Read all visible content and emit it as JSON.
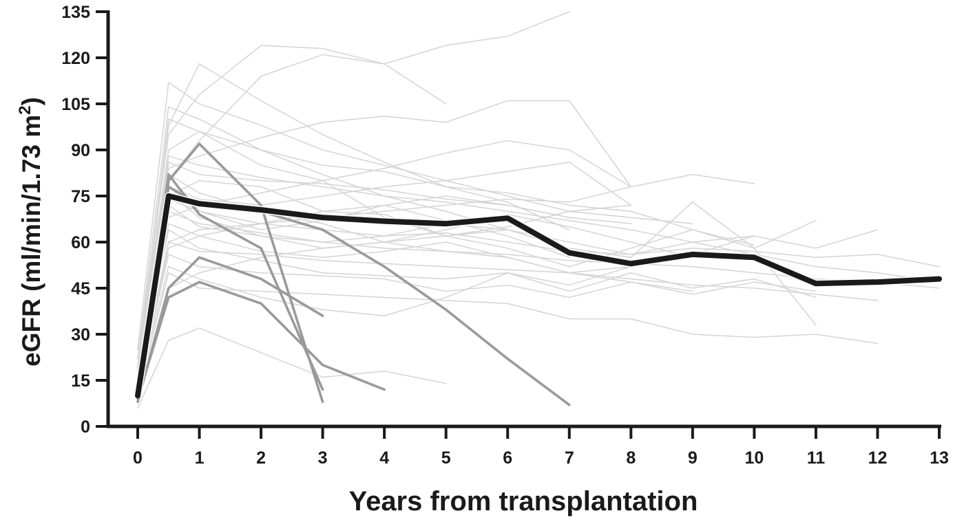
{
  "chart_data": {
    "type": "line",
    "xlabel": "Years from transplantation",
    "ylabel": "eGFR (ml/min/1.73 m",
    "ylabel_superscript": "2",
    "ylabel_suffix": ")",
    "xlim": [
      0,
      13
    ],
    "ylim": [
      0,
      135
    ],
    "x_ticks": [
      "0",
      "1",
      "2",
      "3",
      "4",
      "5",
      "6",
      "7",
      "8",
      "9",
      "10",
      "11",
      "12",
      "13"
    ],
    "y_ticks": [
      "0",
      "15",
      "30",
      "45",
      "60",
      "75",
      "90",
      "105",
      "120",
      "135"
    ],
    "grid": false,
    "legend": "none",
    "colors": {
      "individual": "#d6d6d6",
      "highlighted": "#9a9a9a",
      "mean": "#1a1a1a",
      "axis": "#1a1a1a"
    },
    "series": [
      {
        "group": "individual",
        "x": [
          0,
          0.5,
          1,
          2,
          3,
          4,
          5,
          6,
          7,
          8
        ],
        "y": [
          20,
          75,
          80,
          78,
          70,
          69,
          62,
          65,
          70,
          72
        ]
      },
      {
        "group": "individual",
        "x": [
          0,
          0.5,
          1,
          2,
          3,
          4,
          5,
          6,
          7,
          8,
          9
        ],
        "y": [
          25,
          112,
          105,
          98,
          90,
          85,
          80,
          75,
          70,
          68,
          66
        ]
      },
      {
        "group": "individual",
        "x": [
          0,
          0.5,
          1,
          2,
          3,
          4,
          5,
          6,
          7,
          8,
          9,
          10
        ],
        "y": [
          18,
          100,
          96,
          90,
          85,
          83,
          78,
          76,
          72,
          70,
          64,
          59
        ]
      },
      {
        "group": "individual",
        "x": [
          0,
          0.5,
          1,
          2,
          3,
          4,
          5,
          6,
          7,
          8,
          9,
          10,
          11,
          12,
          13
        ],
        "y": [
          15,
          88,
          85,
          81,
          78,
          75,
          73,
          70,
          67,
          64,
          60,
          56,
          52,
          50,
          47
        ]
      },
      {
        "group": "individual",
        "x": [
          0,
          0.5,
          1,
          2,
          3,
          4,
          5,
          6,
          7,
          8,
          9,
          10,
          11,
          12,
          13
        ],
        "y": [
          20,
          70,
          66,
          63,
          60,
          58,
          57,
          56,
          54,
          53,
          52,
          50,
          48,
          47,
          45
        ]
      },
      {
        "group": "individual",
        "x": [
          0,
          0.5,
          1,
          2,
          3,
          4,
          5,
          6,
          7,
          8,
          9,
          10,
          11,
          12
        ],
        "y": [
          12,
          60,
          57,
          56,
          54,
          53,
          52,
          51,
          50,
          48,
          46,
          45,
          43,
          41
        ]
      },
      {
        "group": "individual",
        "x": [
          0,
          0.5,
          1,
          2,
          3,
          4,
          5,
          6,
          7,
          8,
          9,
          10,
          11,
          12
        ],
        "y": [
          10,
          50,
          45,
          44,
          43,
          42,
          41,
          40,
          35,
          35,
          30,
          29,
          30,
          27
        ]
      },
      {
        "group": "individual",
        "x": [
          0,
          0.5,
          1,
          2,
          3,
          4,
          5,
          6,
          7
        ],
        "y": [
          22,
          95,
          108,
          124,
          123,
          118,
          124,
          127,
          135
        ]
      },
      {
        "group": "individual",
        "x": [
          0,
          0.5,
          1,
          2,
          3,
          4,
          5
        ],
        "y": [
          16,
          80,
          93,
          114,
          121,
          118,
          105
        ]
      },
      {
        "group": "individual",
        "x": [
          0,
          0.5,
          1,
          2,
          3,
          4,
          5,
          6,
          7,
          8
        ],
        "y": [
          18,
          84,
          88,
          94,
          99,
          101,
          99,
          106,
          106,
          78
        ]
      },
      {
        "group": "individual",
        "x": [
          0,
          0.5,
          1,
          2,
          3,
          4,
          5,
          6,
          7,
          8
        ],
        "y": [
          14,
          68,
          72,
          76,
          80,
          84,
          89,
          93,
          90,
          78
        ]
      },
      {
        "group": "individual",
        "x": [
          0,
          0.5,
          1,
          2,
          3,
          4,
          5,
          6,
          7,
          8,
          9,
          10
        ],
        "y": [
          12,
          58,
          62,
          66,
          68,
          70,
          72,
          74,
          73,
          78,
          82,
          79
        ]
      },
      {
        "group": "individual",
        "x": [
          0,
          0.5,
          1,
          2,
          3,
          4,
          5,
          6,
          7,
          8,
          9,
          10,
          11,
          12
        ],
        "y": [
          9,
          45,
          50,
          55,
          58,
          60,
          62,
          64,
          60,
          56,
          60,
          62,
          58,
          64
        ]
      },
      {
        "group": "individual",
        "x": [
          0,
          0.5,
          1,
          2,
          3,
          4,
          5,
          6,
          7,
          8,
          9,
          10,
          11,
          12,
          13
        ],
        "y": [
          16,
          74,
          70,
          66,
          64,
          62,
          63,
          60,
          57,
          56,
          58,
          57,
          55,
          56,
          52
        ]
      },
      {
        "group": "individual",
        "x": [
          0,
          0.5,
          1,
          2,
          3,
          4,
          5,
          6,
          7,
          8,
          9,
          10
        ],
        "y": [
          12,
          52,
          48,
          42,
          38,
          36,
          42,
          50,
          46,
          52,
          56,
          62
        ]
      },
      {
        "group": "individual",
        "x": [
          0,
          0.5,
          1,
          2,
          3,
          4,
          5
        ],
        "y": [
          6,
          28,
          32,
          24,
          16,
          18,
          14
        ]
      },
      {
        "group": "individual",
        "x": [
          0,
          0.5,
          1,
          2,
          3,
          4,
          5,
          6,
          7,
          8,
          9,
          10,
          11
        ],
        "y": [
          14,
          64,
          58,
          54,
          50,
          49,
          48,
          50,
          44,
          50,
          45,
          48,
          42
        ]
      },
      {
        "group": "individual",
        "x": [
          0,
          0.5,
          1,
          2,
          3,
          4,
          5,
          6,
          7,
          8,
          9,
          10,
          11
        ],
        "y": [
          18,
          90,
          96,
          85,
          80,
          68,
          62,
          58,
          52,
          58,
          64,
          58,
          33
        ]
      },
      {
        "group": "individual",
        "x": [
          0,
          0.5,
          1,
          2,
          3,
          4,
          5,
          6,
          7,
          8,
          9,
          10,
          11
        ],
        "y": [
          20,
          82,
          76,
          70,
          66,
          60,
          57,
          55,
          50,
          47,
          43,
          47,
          44
        ]
      },
      {
        "group": "individual",
        "x": [
          0,
          0.5,
          1,
          2,
          3,
          4,
          5,
          6,
          7,
          8,
          9,
          10,
          11
        ],
        "y": [
          14,
          76,
          68,
          62,
          60,
          62,
          66,
          64,
          58,
          55,
          73,
          58,
          67
        ]
      },
      {
        "group": "individual",
        "x": [
          0,
          0.5,
          1,
          2,
          3,
          4,
          5,
          6,
          7
        ],
        "y": [
          10,
          60,
          64,
          66,
          70,
          72,
          75,
          72,
          68
        ]
      },
      {
        "group": "individual",
        "x": [
          0,
          0.5,
          1,
          2,
          3,
          4,
          5,
          6,
          7,
          8
        ],
        "y": [
          18,
          78,
          74,
          72,
          75,
          78,
          80,
          83,
          86,
          72
        ]
      },
      {
        "group": "individual",
        "x": [
          0,
          0.5,
          1,
          2,
          3,
          4,
          5,
          6,
          7,
          8,
          9
        ],
        "y": [
          12,
          56,
          52,
          50,
          49,
          48,
          44,
          46,
          42,
          47,
          44
        ]
      },
      {
        "group": "individual",
        "x": [
          0,
          0.5,
          1,
          2,
          3,
          4,
          5,
          6
        ],
        "y": [
          22,
          104,
          100,
          90,
          82,
          75,
          70,
          64
        ]
      },
      {
        "group": "individual",
        "x": [
          0,
          0.5,
          1,
          2,
          3,
          4,
          5,
          6,
          7,
          8,
          9
        ],
        "y": [
          16,
          72,
          65,
          62,
          58,
          60,
          64,
          69,
          65,
          60,
          55
        ]
      },
      {
        "group": "individual",
        "x": [
          0,
          0.5,
          1,
          2,
          3,
          4,
          5,
          6,
          7
        ],
        "y": [
          15,
          98,
          118,
          106,
          95,
          86,
          78,
          73,
          64
        ]
      },
      {
        "group": "individual",
        "x": [
          0,
          0.5,
          1,
          2,
          3,
          4,
          5,
          6,
          7
        ],
        "y": [
          19,
          82,
          70,
          64,
          67,
          72,
          67,
          62,
          55
        ]
      },
      {
        "group": "individual",
        "x": [
          0,
          0.5,
          1,
          2,
          3,
          4,
          5,
          6,
          7,
          8
        ],
        "y": [
          12,
          66,
          62,
          57,
          55,
          57,
          60,
          55,
          50,
          52
        ]
      },
      {
        "group": "individual",
        "x": [
          0,
          0.5,
          1,
          2,
          3,
          4,
          5,
          6,
          7,
          8
        ],
        "y": [
          17,
          86,
          82,
          80,
          79,
          77,
          74,
          72,
          68,
          66
        ]
      },
      {
        "group": "highlighted",
        "x": [
          0,
          0.5,
          1,
          2,
          3
        ],
        "y": [
          10,
          80,
          92,
          72,
          8
        ]
      },
      {
        "group": "highlighted",
        "x": [
          0,
          0.5,
          1,
          2,
          3
        ],
        "y": [
          8,
          45,
          55,
          48,
          36
        ]
      },
      {
        "group": "highlighted",
        "x": [
          0,
          0.5,
          1,
          2,
          3
        ],
        "y": [
          10,
          82,
          69,
          58,
          12
        ]
      },
      {
        "group": "highlighted",
        "x": [
          0,
          0.5,
          1,
          2,
          3,
          4
        ],
        "y": [
          9,
          42,
          47,
          40,
          20,
          12
        ]
      },
      {
        "group": "highlighted",
        "x": [
          0,
          0.5,
          1,
          2,
          3,
          4,
          5,
          6,
          7
        ],
        "y": [
          12,
          78,
          72,
          70,
          64,
          52,
          38,
          22,
          7
        ]
      },
      {
        "group": "mean",
        "x": [
          0,
          0.5,
          1,
          2,
          3,
          4,
          5,
          6,
          7,
          8,
          9,
          10,
          11,
          12,
          13
        ],
        "y": [
          10,
          75,
          72.5,
          70.5,
          68,
          66.8,
          66,
          67.8,
          56.5,
          53,
          56,
          55,
          46.5,
          47,
          48
        ]
      }
    ]
  }
}
